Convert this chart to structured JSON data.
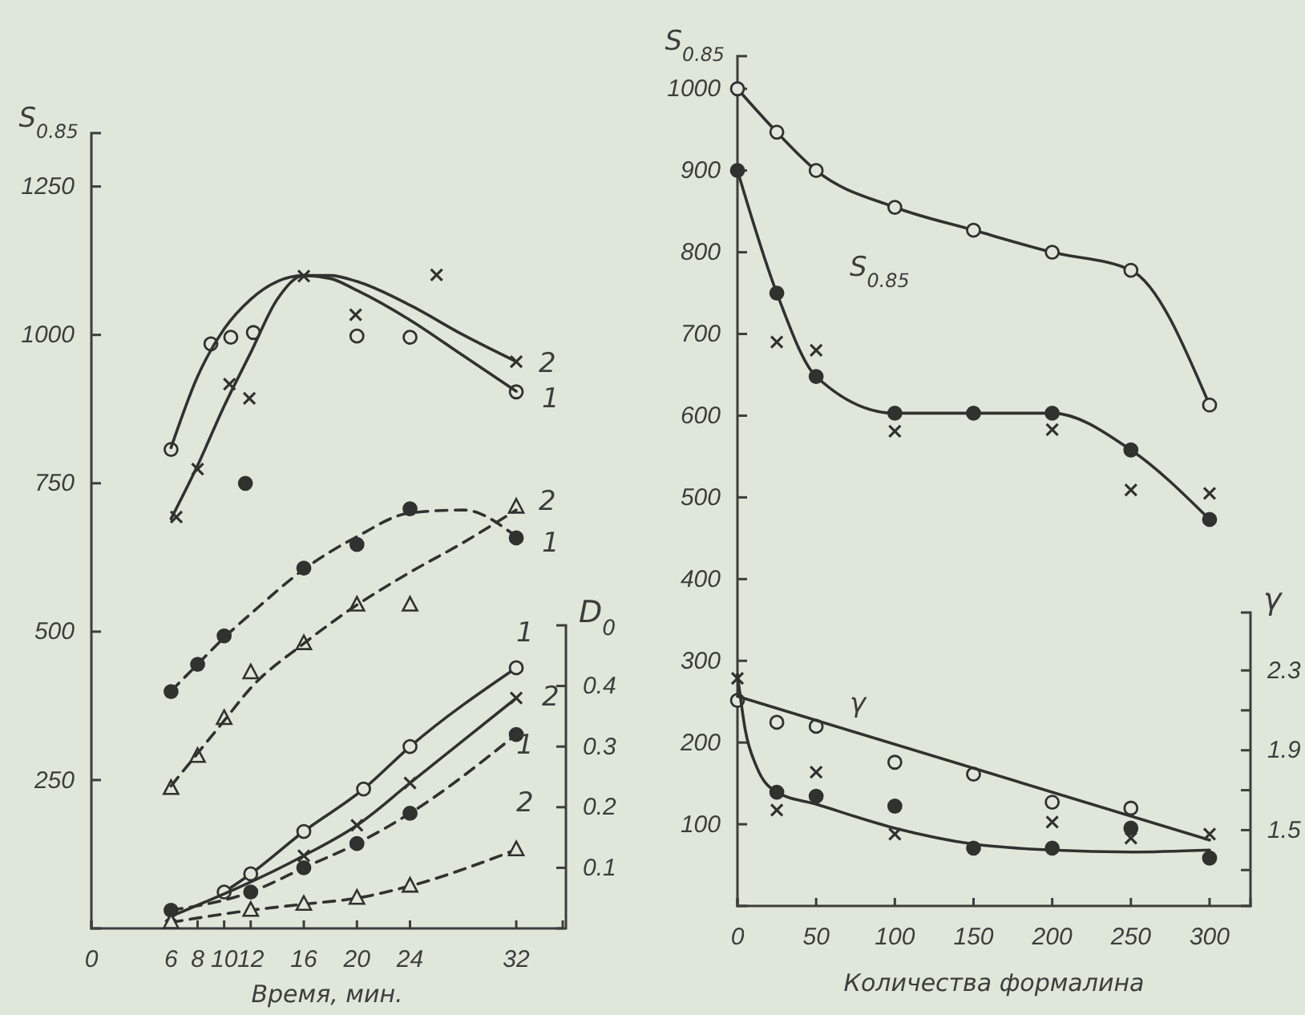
{
  "chart_data": [
    {
      "type": "line",
      "xlabel": "Время, мин.",
      "ylabel": "S$_{0.85}$",
      "y2label": "D$_{0}$",
      "xlim": [
        0,
        35.5
      ],
      "xticks": [
        0,
        6,
        8,
        10,
        12,
        16,
        20,
        24,
        32
      ],
      "ylim": [
        0,
        1340
      ],
      "yticks": [
        250,
        500,
        750,
        1000,
        1250
      ],
      "y2lim": [
        0,
        0.5
      ],
      "y2ticks": [
        0.1,
        0.2,
        0.3,
        0.4
      ],
      "series": [
        {
          "type": "scatter",
          "marker": "circle-open",
          "color": "#2f332f",
          "x": [
            6,
            9,
            10.5,
            12.2,
            20,
            24,
            32
          ],
          "values": [
            807,
            985,
            996,
            1004,
            998,
            996,
            904
          ]
        },
        {
          "type": "line",
          "line_style": "solid",
          "color": "#2f332f",
          "x": [
            6,
            8,
            10,
            12,
            14,
            16,
            18,
            20,
            24,
            28,
            32
          ],
          "values": [
            810,
            930,
            1010,
            1060,
            1090,
            1100,
            1095,
            1075,
            1025,
            965,
            905
          ]
        },
        {
          "type": "scatter",
          "marker": "cross",
          "color": "#2f332f",
          "x": [
            6.4,
            8,
            10.4,
            11.9,
            16,
            19.9,
            26,
            32
          ],
          "values": [
            693,
            774,
            917,
            893,
            1099,
            1034,
            1101,
            955
          ]
        },
        {
          "type": "line",
          "line_style": "solid",
          "color": "#2f332f",
          "x": [
            6,
            8,
            10,
            12,
            14,
            16,
            18,
            20,
            24,
            28,
            32
          ],
          "values": [
            690,
            780,
            880,
            970,
            1060,
            1100,
            1100,
            1090,
            1050,
            1000,
            955
          ]
        },
        {
          "type": "scatter",
          "marker": "circle",
          "color": "#2f332f",
          "x": [
            6,
            8,
            10,
            11.6,
            16,
            20,
            24,
            32
          ],
          "values": [
            399,
            445,
            493,
            750,
            607,
            647,
            707,
            658
          ]
        },
        {
          "type": "line",
          "line_style": "dashed",
          "color": "#2f332f",
          "x": [
            6,
            8,
            10,
            12,
            16,
            20,
            24,
            28,
            32
          ],
          "values": [
            400,
            445,
            490,
            530,
            605,
            660,
            700,
            705,
            660
          ]
        },
        {
          "type": "scatter",
          "marker": "triangle-open",
          "color": "#2f332f",
          "x": [
            6,
            8,
            10,
            12,
            16,
            20,
            24,
            32
          ],
          "values": [
            236,
            290,
            354,
            431,
            480,
            545,
            545,
            710
          ]
        },
        {
          "type": "line",
          "line_style": "dashed",
          "color": "#2f332f",
          "x": [
            6,
            8,
            10,
            12,
            16,
            20,
            24,
            28,
            32
          ],
          "values": [
            240,
            295,
            350,
            405,
            480,
            545,
            600,
            650,
            705
          ]
        },
        {
          "type": "line",
          "axis": "y2",
          "line_style": "solid",
          "marker": "circle-open",
          "color": "#2f332f",
          "x": [
            10,
            12,
            16,
            20.5,
            24,
            32
          ],
          "values": [
            0.06,
            0.09,
            0.16,
            0.23,
            0.3,
            0.43
          ]
        },
        {
          "type": "line",
          "axis": "y2",
          "line_style": "solid",
          "marker": "cross",
          "color": "#2f332f",
          "x": [
            6,
            12,
            16,
            20,
            24,
            32
          ],
          "values": [
            0.02,
            null,
            0.12,
            0.17,
            0.24,
            0.38
          ]
        },
        {
          "type": "line",
          "axis": "y2",
          "line_style": "dashed",
          "marker": "circle",
          "color": "#2f332f",
          "x": [
            6,
            12,
            16,
            20,
            24,
            32
          ],
          "values": [
            0.03,
            0.06,
            0.1,
            0.14,
            0.19,
            0.32
          ]
        },
        {
          "type": "line",
          "axis": "y2",
          "line_style": "dashed",
          "marker": "triangle-open",
          "color": "#2f332f",
          "x": [
            6,
            12,
            16,
            20,
            24,
            32
          ],
          "values": [
            0.01,
            0.03,
            0.04,
            0.05,
            0.07,
            0.13
          ]
        }
      ],
      "annotations": [
        "2",
        "1",
        "2",
        "1",
        "1",
        "2",
        "1",
        "2"
      ]
    },
    {
      "type": "line",
      "xlabel": "Количества формалина",
      "ylabel": "S$_{0.85}$",
      "y2label": "γ",
      "xlim": [
        0,
        326
      ],
      "xticks": [
        0,
        50,
        100,
        150,
        200,
        250,
        300
      ],
      "ylim": [
        0,
        1040
      ],
      "yticks": [
        100,
        200,
        300,
        400,
        500,
        600,
        700,
        800,
        900,
        1000
      ],
      "y2lim": [
        1.12,
        2.59
      ],
      "y2ticks": [
        {
          "value": 1.3,
          "label": null
        },
        1.5,
        {
          "value": 1.7,
          "label": null
        },
        1.9,
        {
          "value": 2.1,
          "label": null
        },
        2.3
      ],
      "series": [
        {
          "type": "line",
          "line_style": "solid",
          "marker": "circle-open",
          "color": "#2f332f",
          "x": [
            0,
            25,
            50,
            100,
            150,
            200,
            250,
            300
          ],
          "values": [
            1000,
            947,
            900,
            855,
            827,
            800,
            778,
            613
          ]
        },
        {
          "type": "line",
          "line_style": "solid",
          "marker": "circle",
          "color": "#2f332f",
          "x": [
            0,
            25,
            50,
            100,
            150,
            200,
            250,
            300
          ],
          "values": [
            900,
            750,
            648,
            603,
            603,
            603,
            558,
            473
          ]
        },
        {
          "type": "scatter",
          "marker": "cross",
          "color": "#2f332f",
          "x": [
            25,
            50,
            100,
            200,
            250,
            300
          ],
          "values": [
            690,
            680,
            581,
            583,
            509,
            505
          ]
        },
        {
          "type": "scatter",
          "axis": "y2",
          "marker": "circle-open",
          "color": "#2f332f",
          "x": [
            0,
            25,
            50,
            100,
            150,
            200,
            250
          ],
          "values": [
            2.15,
            2.04,
            2.02,
            1.84,
            1.78,
            1.64,
            1.61
          ]
        },
        {
          "type": "line",
          "axis": "y2",
          "line_style": "solid",
          "color": "#2f332f",
          "x": [
            0,
            300
          ],
          "values": [
            2.17,
            1.45
          ]
        },
        {
          "type": "scatter",
          "axis": "y2",
          "marker": "circle",
          "color": "#2f332f",
          "x": [
            25,
            50,
            100,
            150,
            200,
            250,
            300
          ],
          "values": [
            1.69,
            1.67,
            1.62,
            1.41,
            1.41,
            1.51,
            1.36
          ]
        },
        {
          "type": "scatter",
          "axis": "y2",
          "marker": "cross",
          "color": "#2f332f",
          "x": [
            0,
            25,
            50,
            100,
            200,
            250,
            300
          ],
          "values": [
            2.26,
            1.6,
            1.79,
            1.48,
            1.54,
            1.46,
            1.48
          ]
        },
        {
          "type": "line",
          "axis": "y2",
          "line_style": "solid",
          "color": "#2f332f",
          "x": [
            0,
            5,
            12,
            25,
            50,
            100,
            150,
            200,
            250,
            300
          ],
          "values": [
            2.28,
            2.0,
            1.82,
            1.69,
            1.63,
            1.51,
            1.43,
            1.4,
            1.39,
            1.4
          ]
        }
      ],
      "annotations": [
        "S$_{0.85}$",
        "γ"
      ]
    }
  ]
}
